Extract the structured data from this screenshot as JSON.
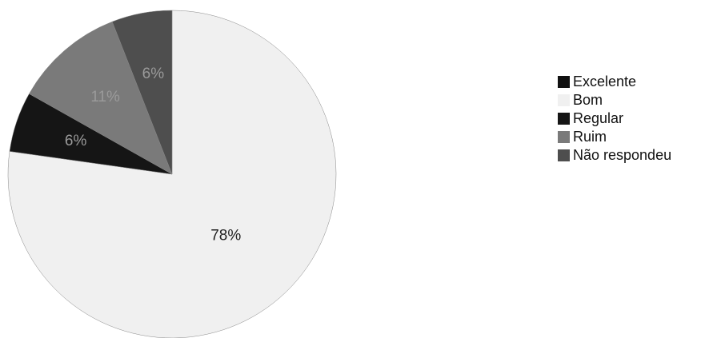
{
  "chart_data": {
    "type": "pie",
    "categories": [
      "Excelente",
      "Bom",
      "Regular",
      "Ruim",
      "Não respondeu"
    ],
    "values": [
      0,
      78,
      6,
      11,
      6
    ],
    "value_labels": [
      null,
      "78%",
      "6%",
      "11%",
      "6%"
    ],
    "colors": [
      "#111111",
      "#f0f0f0",
      "#151515",
      "#7a7a7a",
      "#4e4e4e"
    ],
    "legend": "right"
  }
}
